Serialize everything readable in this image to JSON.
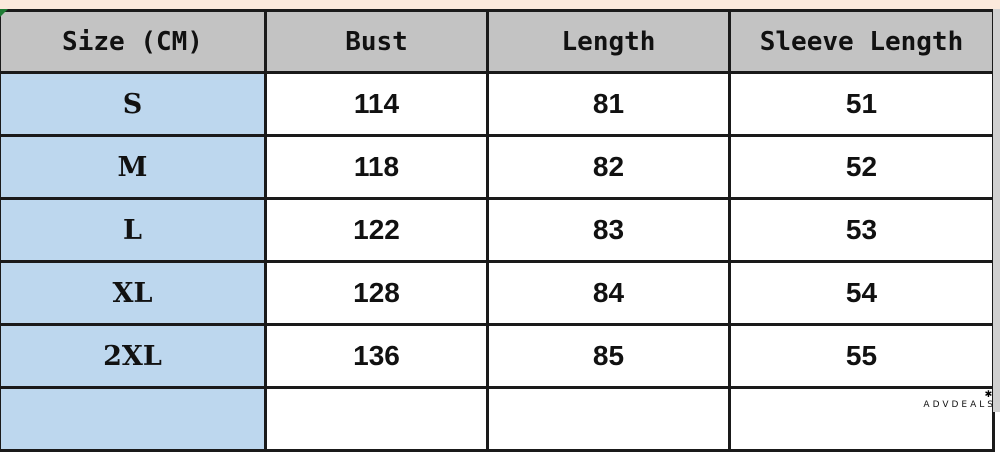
{
  "table": {
    "headers": [
      "Size (CM)",
      "Bust",
      "Length",
      "Sleeve Length"
    ],
    "rows": [
      [
        "S",
        "114",
        "81",
        "51"
      ],
      [
        "M",
        "118",
        "82",
        "52"
      ],
      [
        "L",
        "122",
        "83",
        "53"
      ],
      [
        "XL",
        "128",
        "84",
        "54"
      ],
      [
        "2XL",
        "136",
        "85",
        "55"
      ]
    ]
  },
  "watermark": "ADVDEALS"
}
